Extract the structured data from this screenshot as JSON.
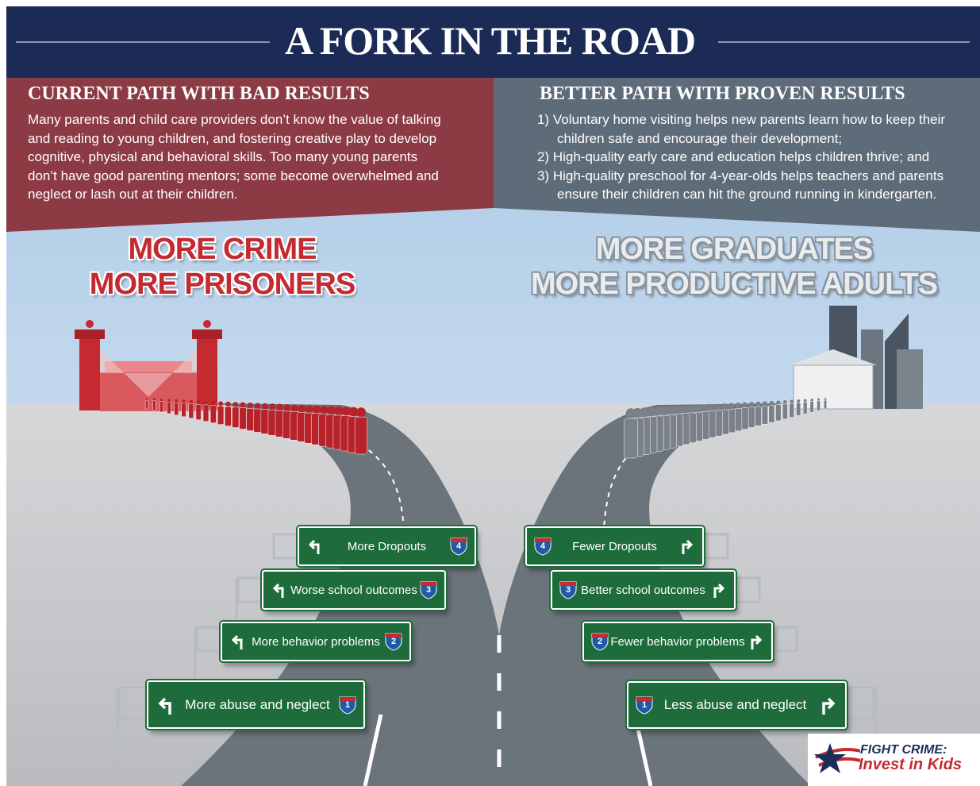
{
  "header": {
    "title": "A FORK IN THE ROAD"
  },
  "left_panel": {
    "heading": "CURRENT PATH WITH BAD RESULTS",
    "body": "Many parents and child care providers don’t know the value of talking and reading to young children, and fostering creative play to develop cognitive, physical and behavioral skills. Too many young parents don’t have good parenting mentors; some become overwhelmed and neglect or lash out at their children."
  },
  "right_panel": {
    "heading": "BETTER PATH WITH PROVEN RESULTS",
    "items": [
      "1) Voluntary home visiting helps new parents learn how to keep their children safe and encourage their development;",
      "2) High-quality early care and education helps children thrive; and",
      "3) High-quality preschool for 4-year-olds helps teachers and parents ensure their children can hit the ground running in kindergarten."
    ]
  },
  "left_outcome": {
    "lines": [
      "MORE CRIME",
      "MORE PRISONERS"
    ]
  },
  "right_outcome": {
    "lines": [
      "MORE GRADUATES",
      "MORE PRODUCTIVE ADULTS"
    ]
  },
  "left_signs": [
    {
      "label": "More Dropouts",
      "number": 4
    },
    {
      "label": "Worse school outcomes",
      "number": 3
    },
    {
      "label": "More behavior problems",
      "number": 2
    },
    {
      "label": "More abuse and neglect",
      "number": 1
    }
  ],
  "right_signs": [
    {
      "label": "Fewer Dropouts",
      "number": 4
    },
    {
      "label": "Better school outcomes",
      "number": 3
    },
    {
      "label": "Fewer behavior problems",
      "number": 2
    },
    {
      "label": "Less abuse and neglect",
      "number": 1
    }
  ],
  "logo": {
    "line1": "FIGHT CRIME:",
    "line2": "Invest in Kids"
  }
}
